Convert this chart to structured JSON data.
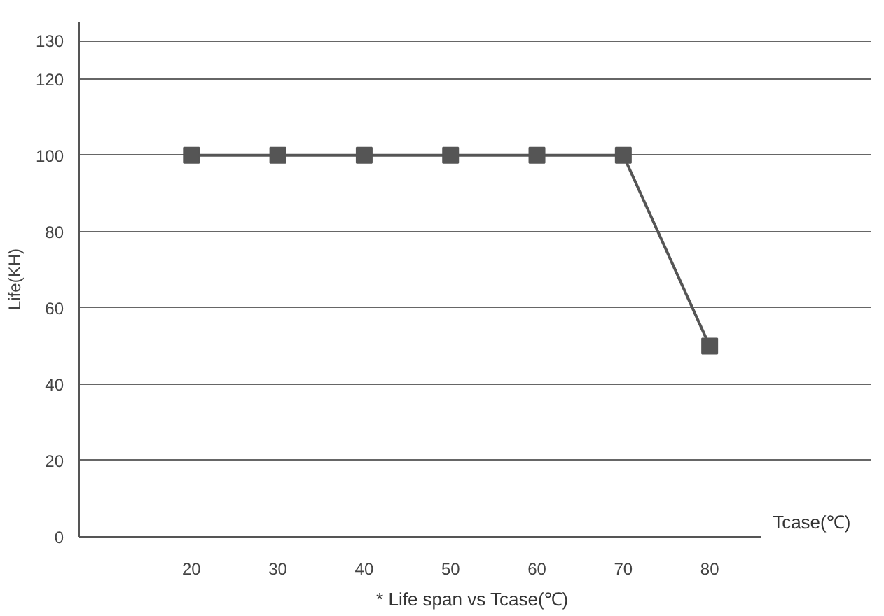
{
  "chart_data": {
    "type": "line",
    "xlabel": "Tcase(℃)",
    "ylabel": "Life(KH)",
    "annotations": [
      "*  Life span vs Tcase(℃)"
    ],
    "x": [
      20,
      30,
      40,
      50,
      60,
      70,
      80
    ],
    "series": [
      {
        "color": "#555555",
        "values": [
          100,
          100,
          100,
          100,
          100,
          100,
          50
        ]
      }
    ],
    "xlim": [
      7,
      86
    ],
    "xticks": [
      20,
      30,
      40,
      50,
      60,
      70,
      80
    ],
    "ylim": [
      0,
      135
    ],
    "yticks": [
      0,
      20,
      40,
      60,
      80,
      100,
      120,
      130
    ],
    "grid": "y",
    "marker": "square",
    "line_style": "solid"
  }
}
